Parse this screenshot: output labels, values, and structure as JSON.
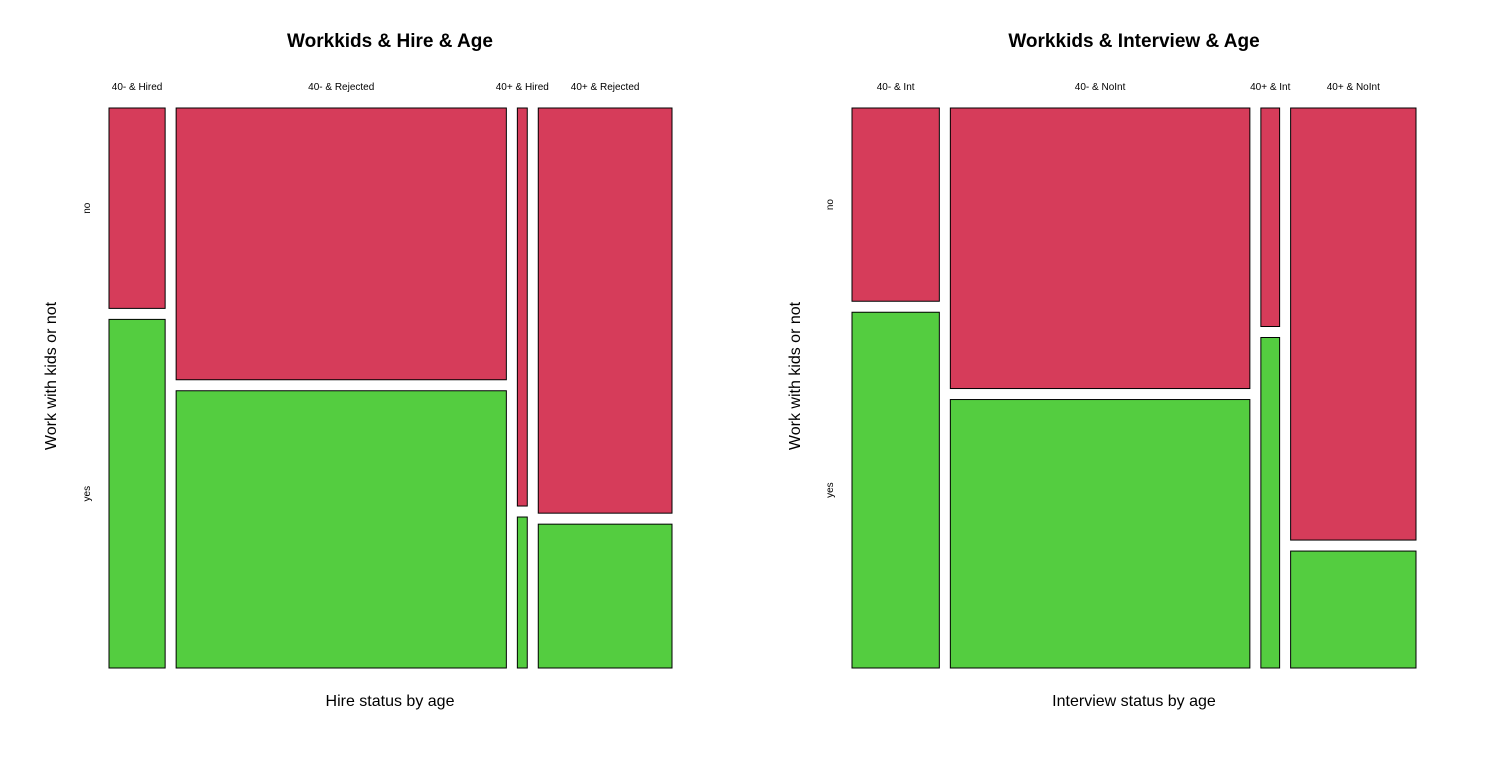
{
  "colors": {
    "no": "#D63C5A",
    "yes": "#54CD40",
    "border": "#000000"
  },
  "chart_data": [
    {
      "type": "mosaic",
      "title": "Workkids & Hire & Age",
      "xlabel": "Hire status by age",
      "ylabel": "Work with kids or not",
      "rows": [
        "no",
        "yes"
      ],
      "columns": [
        {
          "label": "40- & Hired",
          "width_share": 0.102,
          "no_share": 0.365,
          "yes_share": 0.635
        },
        {
          "label": "40- & Rejected",
          "width_share": 0.6,
          "no_share": 0.495,
          "yes_share": 0.505
        },
        {
          "label": "40+ & Hired",
          "width_share": 0.018,
          "no_share": 0.725,
          "yes_share": 0.275
        },
        {
          "label": "40+ & Rejected",
          "width_share": 0.243,
          "no_share": 0.738,
          "yes_share": 0.262
        }
      ]
    },
    {
      "type": "mosaic",
      "title": "Workkids & Interview & Age",
      "xlabel": "Interview status by age",
      "ylabel": "Work with kids or not",
      "rows": [
        "no",
        "yes"
      ],
      "columns": [
        {
          "label": "40- & Int",
          "width_share": 0.163,
          "no_share": 0.352,
          "yes_share": 0.648
        },
        {
          "label": "40- & NoInt",
          "width_share": 0.559,
          "no_share": 0.511,
          "yes_share": 0.489
        },
        {
          "label": "40+ & Int",
          "width_share": 0.035,
          "no_share": 0.398,
          "yes_share": 0.602
        },
        {
          "label": "40+ & NoInt",
          "width_share": 0.234,
          "no_share": 0.787,
          "yes_share": 0.213
        }
      ]
    }
  ]
}
